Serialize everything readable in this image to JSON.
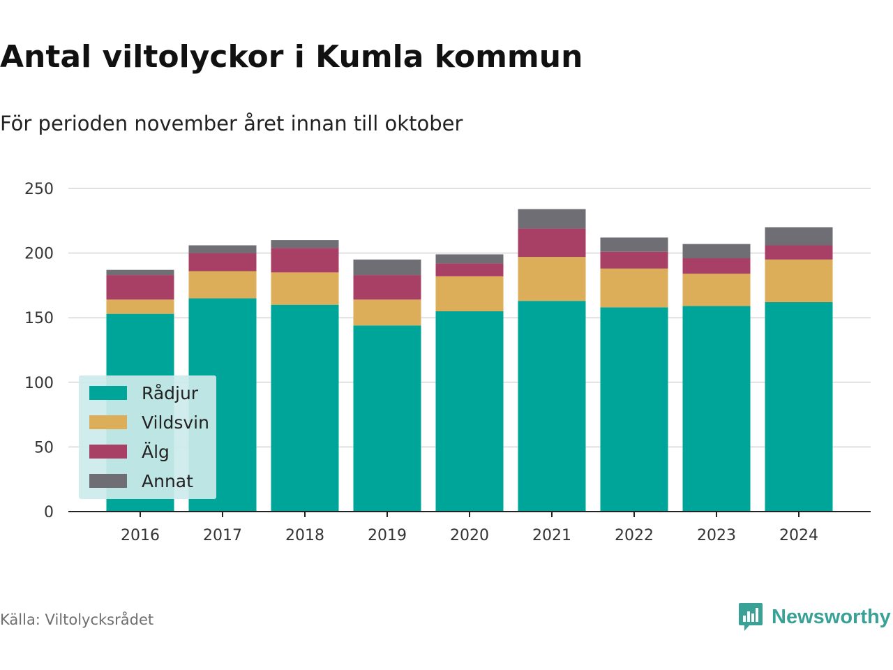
{
  "title": "Antal viltolyckor i Kumla kommun",
  "subtitle": "För perioden november året innan till oktober",
  "source": "Källa: Viltolycksrådet",
  "brand": "Newsworthy",
  "colors": {
    "grid": "#e0e0e0",
    "axis": "#222222",
    "legend_bg": "#cdeaea",
    "brand": "#3aa196"
  },
  "chart_data": {
    "type": "bar",
    "stacked": true,
    "categories": [
      "2016",
      "2017",
      "2018",
      "2019",
      "2020",
      "2021",
      "2022",
      "2023",
      "2024"
    ],
    "series": [
      {
        "name": "Rådjur",
        "color": "#00a59a",
        "values": [
          153,
          165,
          160,
          144,
          155,
          163,
          158,
          159,
          162
        ]
      },
      {
        "name": "Vildsvin",
        "color": "#ddae59",
        "values": [
          11,
          21,
          25,
          20,
          27,
          34,
          30,
          25,
          33
        ]
      },
      {
        "name": "Älg",
        "color": "#a84066",
        "values": [
          19,
          14,
          19,
          19,
          10,
          22,
          13,
          12,
          11
        ]
      },
      {
        "name": "Annat",
        "color": "#6f6e74",
        "values": [
          4,
          6,
          6,
          12,
          7,
          15,
          11,
          11,
          14
        ]
      }
    ],
    "ylim": [
      0,
      250
    ],
    "yticks": [
      0,
      50,
      100,
      150,
      200,
      250
    ],
    "grid": true,
    "legend_position": "bottom-left"
  }
}
